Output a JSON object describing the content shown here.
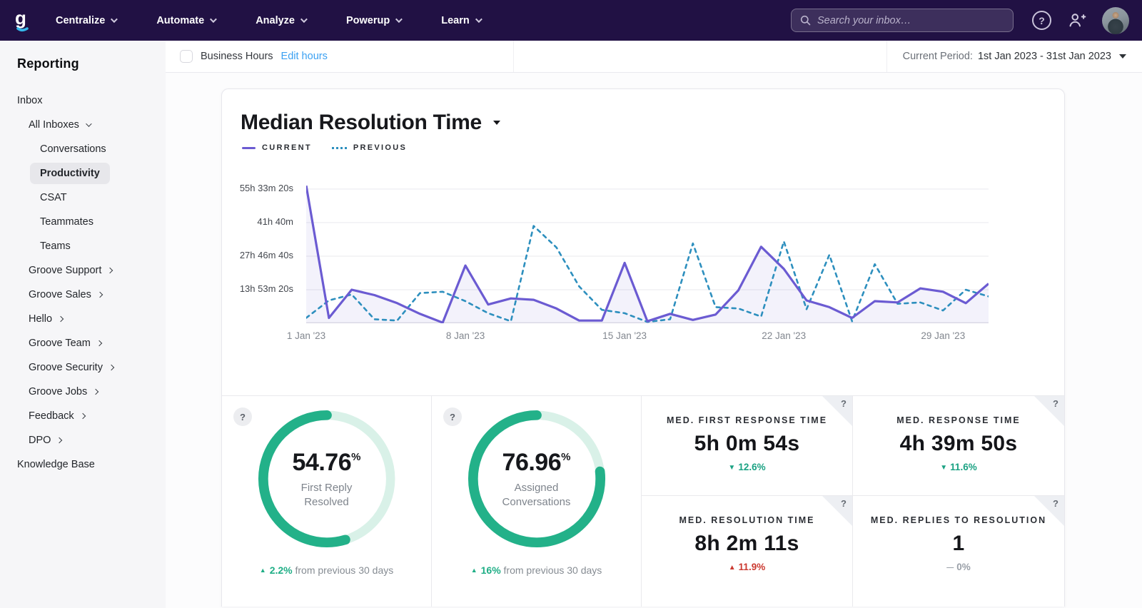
{
  "colors": {
    "nav_bg": "#211144",
    "accent_current": "#6b5bd2",
    "accent_previous": "#2d8fbe",
    "positive_green": "#1fae86",
    "negative_red": "#cb3a31",
    "link_blue": "#3aa0f2",
    "donut_green": "#23b189",
    "donut_track": "#d9f1e8",
    "logo_cyan": "#35b7ea"
  },
  "nav": {
    "items": [
      {
        "label": "Centralize"
      },
      {
        "label": "Automate"
      },
      {
        "label": "Analyze"
      },
      {
        "label": "Powerup"
      },
      {
        "label": "Learn"
      }
    ],
    "search_placeholder": "Search your inbox…",
    "help_glyph": "?"
  },
  "sidebar": {
    "title": "Reporting",
    "items": [
      {
        "label": "Inbox"
      },
      {
        "label": "All Inboxes"
      },
      {
        "label": "Conversations"
      },
      {
        "label": "Productivity",
        "selected": true
      },
      {
        "label": "CSAT"
      },
      {
        "label": "Teammates"
      },
      {
        "label": "Teams"
      },
      {
        "label": "Groove Support"
      },
      {
        "label": "Groove Sales"
      },
      {
        "label": "Hello"
      },
      {
        "label": "Groove Team"
      },
      {
        "label": "Groove Security"
      },
      {
        "label": "Groove Jobs"
      },
      {
        "label": "Feedback"
      },
      {
        "label": "DPO"
      },
      {
        "label": "Knowledge Base"
      }
    ]
  },
  "subheader": {
    "business_hours_label": "Business Hours",
    "edit_hours_label": "Edit hours",
    "current_period_label": "Current Period:",
    "current_period_value": "1st Jan 2023 - 31st Jan 2023"
  },
  "chart_data": {
    "type": "line",
    "title": "Median Resolution Time",
    "grid": "horizontal",
    "legend_position": "top-left",
    "y_unit": "seconds",
    "ylim": [
      0,
      218000
    ],
    "y_tick_values": [
      50000,
      100000,
      150000,
      200000
    ],
    "y_tick_labels": [
      "13h 53m 20s",
      "27h 46m 40s",
      "41h 40m",
      "55h 33m 20s"
    ],
    "x": [
      1,
      2,
      3,
      4,
      5,
      6,
      7,
      8,
      9,
      10,
      11,
      12,
      13,
      14,
      15,
      16,
      17,
      18,
      19,
      20,
      21,
      22,
      23,
      24,
      25,
      26,
      27,
      28,
      29,
      30,
      31
    ],
    "x_tick_days": [
      1,
      8,
      15,
      22,
      29
    ],
    "x_tick_labels": [
      "1 Jan '23",
      "8 Jan '23",
      "15 Jan '23",
      "22 Jan '23",
      "29 Jan '23"
    ],
    "series": [
      {
        "name": "CURRENT",
        "style": "solid",
        "color": "#6b5bd2",
        "values": [
          205000,
          8000,
          50000,
          42000,
          30000,
          14000,
          1000,
          86000,
          28000,
          37000,
          35000,
          22000,
          4000,
          4000,
          90000,
          3000,
          14000,
          5000,
          13000,
          49000,
          114000,
          81000,
          34000,
          24000,
          8000,
          33000,
          31000,
          52000,
          47000,
          30000,
          59000
        ]
      },
      {
        "name": "PREVIOUS",
        "style": "dashed",
        "color": "#2d8fbe",
        "values": [
          8000,
          34000,
          43000,
          6000,
          4000,
          45000,
          47000,
          33000,
          15000,
          3000,
          145000,
          113000,
          55000,
          20000,
          15000,
          2000,
          6000,
          119000,
          24000,
          22000,
          10000,
          122000,
          21000,
          102000,
          3000,
          88000,
          29000,
          31000,
          19000,
          50000,
          40000
        ]
      }
    ]
  },
  "cards": {
    "donuts": [
      {
        "help_glyph": "?",
        "value": "54.76",
        "unit": "%",
        "percent": 54.76,
        "label_line1": "First Reply",
        "label_line2": "Resolved",
        "arrow": "▲",
        "delta": "2.2%",
        "delta_suffix": "from previous 30 days"
      },
      {
        "help_glyph": "?",
        "value": "76.96",
        "unit": "%",
        "percent": 76.96,
        "label_line1": "Assigned",
        "label_line2": "Conversations",
        "arrow": "▲",
        "delta": "16%",
        "delta_suffix": "from previous 30 days"
      }
    ],
    "metrics": [
      {
        "help_glyph": "?",
        "label": "MED. FIRST RESPONSE TIME",
        "value": "5h 0m 54s",
        "arrow": "▼",
        "delta": "12.6%",
        "sentiment": "good"
      },
      {
        "help_glyph": "?",
        "label": "MED. RESPONSE TIME",
        "value": "4h 39m 50s",
        "arrow": "▼",
        "delta": "11.6%",
        "sentiment": "good"
      },
      {
        "help_glyph": "?",
        "label": "MED. RESOLUTION TIME",
        "value": "8h 2m 11s",
        "arrow": "▲",
        "delta": "11.9%",
        "sentiment": "bad"
      },
      {
        "help_glyph": "?",
        "label": "MED. REPLIES TO RESOLUTION",
        "value": "1",
        "arrow": "—",
        "delta": "0%",
        "sentiment": "neutral"
      }
    ]
  }
}
